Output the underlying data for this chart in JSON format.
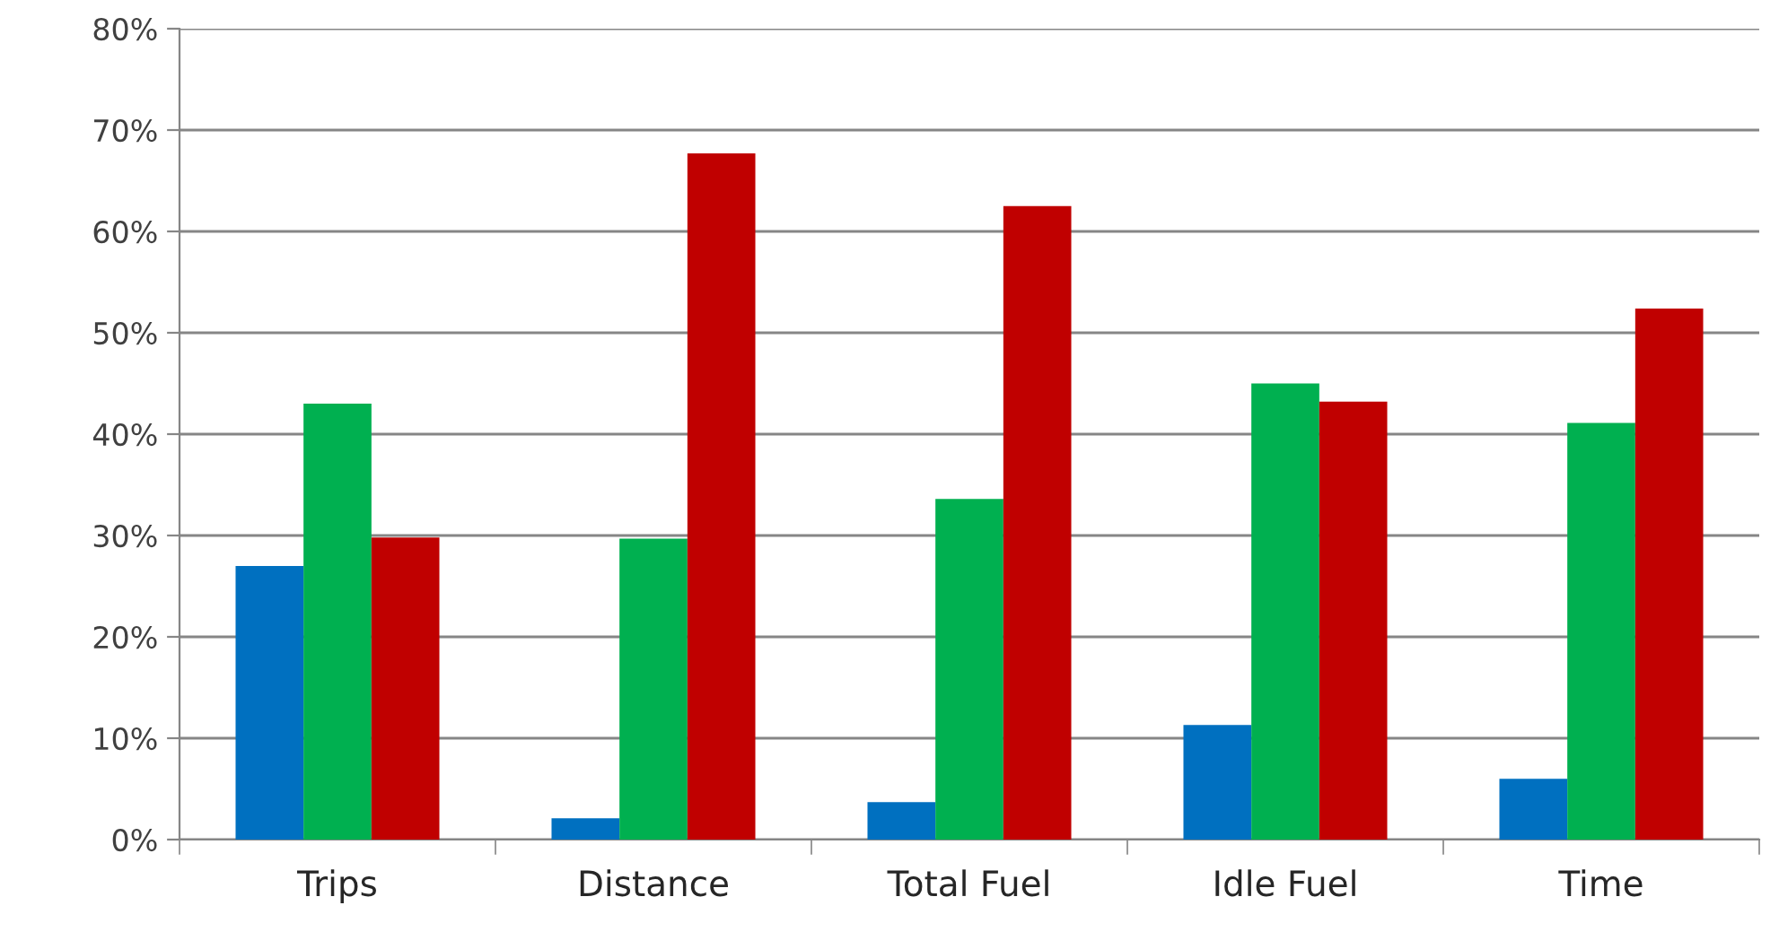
{
  "chart_data": {
    "type": "bar",
    "categories": [
      "Trips",
      "Distance",
      "Total Fuel",
      "Idle Fuel",
      "Time"
    ],
    "series": [
      {
        "color": "#0070c0",
        "values": [
          27,
          2.1,
          3.7,
          11.3,
          6
        ]
      },
      {
        "color": "#00b050",
        "values": [
          43,
          29.7,
          33.6,
          45,
          41.1
        ]
      },
      {
        "color": "#c00000",
        "values": [
          29.8,
          67.7,
          62.5,
          43.2,
          52.4
        ]
      }
    ],
    "ylim": [
      0,
      80
    ],
    "yticks": [
      {
        "value": 0,
        "label": "0%"
      },
      {
        "value": 10,
        "label": "10%"
      },
      {
        "value": 20,
        "label": "20%"
      },
      {
        "value": 30,
        "label": "30%"
      },
      {
        "value": 40,
        "label": "40%"
      },
      {
        "value": 50,
        "label": "50%"
      },
      {
        "value": 60,
        "label": "60%"
      },
      {
        "value": 70,
        "label": "70%"
      },
      {
        "value": 80,
        "label": "80%"
      }
    ],
    "grid": "y",
    "legend": false
  }
}
